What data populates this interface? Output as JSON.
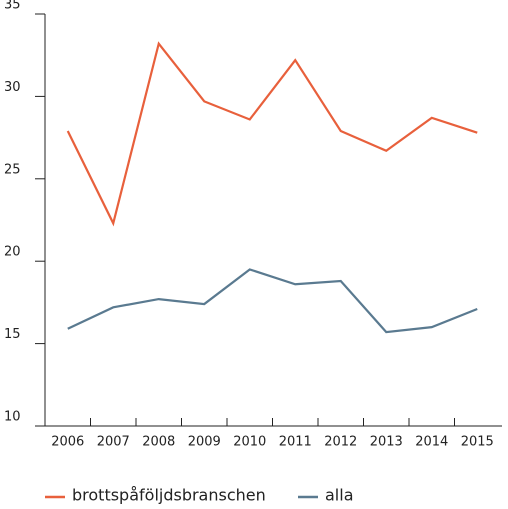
{
  "chart_data": {
    "type": "line",
    "categories": [
      "2006",
      "2007",
      "2008",
      "2009",
      "2010",
      "2011",
      "2012",
      "2013",
      "2014",
      "2015"
    ],
    "series": [
      {
        "name": "brottspåföljdsbranschen",
        "color": "#e8603c",
        "values": [
          27.9,
          22.3,
          33.2,
          29.7,
          28.6,
          32.2,
          27.9,
          26.7,
          28.7,
          27.8
        ]
      },
      {
        "name": "alla",
        "color": "#5a7a90",
        "values": [
          15.9,
          17.2,
          17.7,
          17.4,
          19.5,
          18.6,
          18.8,
          15.7,
          16.0,
          17.1
        ]
      }
    ],
    "ylim": [
      10,
      35
    ],
    "yticks": [
      10,
      15,
      20,
      25,
      30,
      35
    ],
    "grid": false,
    "legend": "bottom"
  }
}
